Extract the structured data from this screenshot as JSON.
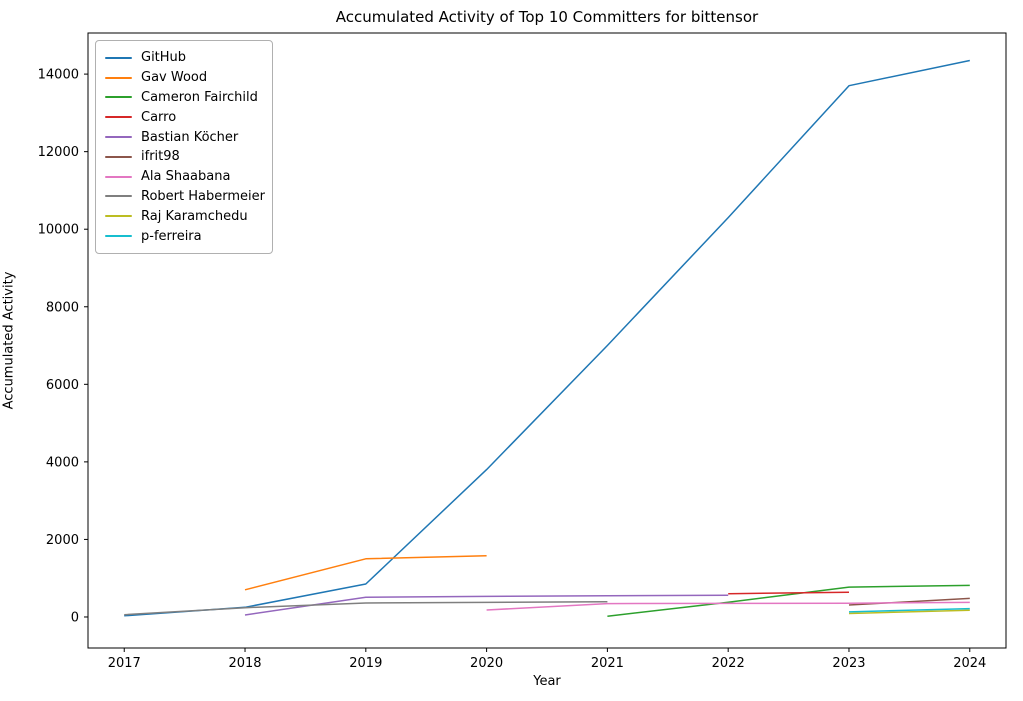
{
  "figure": {
    "title": "Accumulated Activity of Top 10 Committers for bittensor",
    "xlabel": "Year",
    "ylabel": "Accumulated Activity"
  },
  "chart_data": {
    "type": "line",
    "title": "Accumulated Activity of Top 10 Committers for bittensor",
    "xlabel": "Year",
    "ylabel": "Accumulated Activity",
    "x_ticks": [
      2017,
      2018,
      2019,
      2020,
      2021,
      2022,
      2023,
      2024
    ],
    "y_ticks": [
      0,
      2000,
      4000,
      6000,
      8000,
      10000,
      12000,
      14000
    ],
    "xlim": [
      2016.7,
      2024.3
    ],
    "ylim": [
      -800,
      15060
    ],
    "grid": false,
    "legend_position": "upper left",
    "line_width": 1.5,
    "series": [
      {
        "name": "GitHub",
        "color": "#1f77b4",
        "points": [
          [
            2017,
            30
          ],
          [
            2018,
            250
          ],
          [
            2019,
            850
          ],
          [
            2020,
            3800
          ],
          [
            2021,
            7000
          ],
          [
            2022,
            10300
          ],
          [
            2023,
            13700
          ],
          [
            2024,
            14350
          ]
        ]
      },
      {
        "name": "Gav Wood",
        "color": "#ff7f0e",
        "points": [
          [
            2018,
            700
          ],
          [
            2019,
            1500
          ],
          [
            2020,
            1580
          ]
        ]
      },
      {
        "name": "Cameron Fairchild",
        "color": "#2ca02c",
        "points": [
          [
            2021,
            20
          ],
          [
            2022,
            380
          ],
          [
            2023,
            770
          ],
          [
            2024,
            815
          ]
        ]
      },
      {
        "name": "Carro",
        "color": "#d62728",
        "points": [
          [
            2022,
            600
          ],
          [
            2023,
            640
          ]
        ]
      },
      {
        "name": "Bastian Köcher",
        "color": "#9467bd",
        "points": [
          [
            2018,
            50
          ],
          [
            2019,
            510
          ],
          [
            2020,
            530
          ],
          [
            2021,
            545
          ],
          [
            2022,
            560
          ]
        ]
      },
      {
        "name": "ifrit98",
        "color": "#8c564b",
        "points": [
          [
            2023,
            310
          ],
          [
            2024,
            480
          ]
        ]
      },
      {
        "name": "Ala Shaabana",
        "color": "#e377c2",
        "points": [
          [
            2020,
            180
          ],
          [
            2021,
            345
          ],
          [
            2022,
            350
          ],
          [
            2023,
            355
          ],
          [
            2024,
            375
          ]
        ]
      },
      {
        "name": "Robert Habermeier",
        "color": "#7f7f7f",
        "points": [
          [
            2017,
            60
          ],
          [
            2018,
            240
          ],
          [
            2019,
            360
          ],
          [
            2020,
            375
          ],
          [
            2021,
            395
          ]
        ]
      },
      {
        "name": "Raj Karamchedu",
        "color": "#bcbd22",
        "points": [
          [
            2023,
            90
          ],
          [
            2024,
            175
          ]
        ]
      },
      {
        "name": "p-ferreira",
        "color": "#17becf",
        "points": [
          [
            2023,
            130
          ],
          [
            2024,
            215
          ]
        ]
      }
    ]
  }
}
